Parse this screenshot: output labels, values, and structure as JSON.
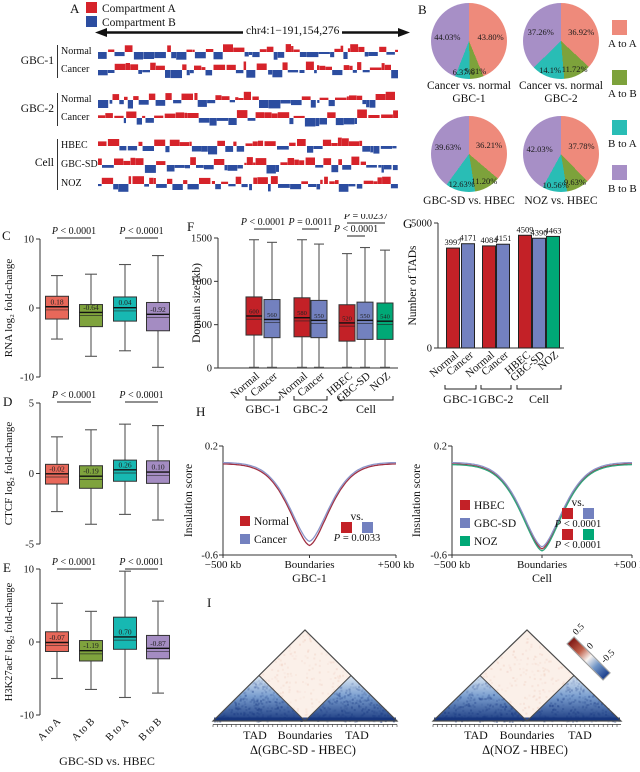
{
  "panels": {
    "a": "A",
    "b": "B",
    "c": "C",
    "d": "D",
    "e": "E",
    "f": "F",
    "g": "G",
    "h": "H",
    "i": "I"
  },
  "panelA": {
    "legend": [
      {
        "label": "Compartment A",
        "color": "#d6232a"
      },
      {
        "label": "Compartment B",
        "color": "#2c4da0"
      }
    ],
    "region": "chr4:1−191,154,276",
    "groups": [
      {
        "name": "GBC-1",
        "tracks": [
          "Normal",
          "Cancer"
        ]
      },
      {
        "name": "GBC-2",
        "tracks": [
          "Normal",
          "Cancer"
        ]
      },
      {
        "name": "Cell",
        "tracks": [
          "HBEC",
          "GBC-SD",
          "NOZ"
        ]
      }
    ]
  },
  "panelB": {
    "legend": [
      {
        "label": "A to A",
        "color": "#ee8a7b"
      },
      {
        "label": "A to B",
        "color": "#7da23b"
      },
      {
        "label": "B to A",
        "color": "#29bdb5"
      },
      {
        "label": "B to B",
        "color": "#a78fc6"
      }
    ]
  },
  "chart_data": [
    {
      "id": "compartment-pies",
      "type": "pie",
      "colors": [
        "#ee8a7b",
        "#7da23b",
        "#29bdb5",
        "#a78fc6"
      ],
      "slice_names": [
        "A to A",
        "A to B",
        "B to A",
        "B to B"
      ],
      "pies": [
        {
          "title": "Cancer vs. normal",
          "subtitle": "GBC-1",
          "values": [
            43.8,
            5.81,
            6.37,
            44.03
          ],
          "labels": [
            "43.80%",
            "5.81%",
            "6.37%",
            "44.03%"
          ]
        },
        {
          "title": "Cancer vs. normal",
          "subtitle": "GBC-2",
          "values": [
            36.92,
            11.72,
            14.1,
            37.26
          ],
          "labels": [
            "36.92%",
            "11.72%",
            "14.1%",
            "37.26%"
          ]
        },
        {
          "title": "",
          "subtitle": "GBC-SD vs. HBEC",
          "values": [
            36.21,
            11.2,
            12.63,
            39.63
          ],
          "labels": [
            "36.21%",
            "11.20%",
            "12.63%",
            "39.63%"
          ]
        },
        {
          "title": "",
          "subtitle": "NOZ vs. HBEC",
          "values": [
            37.78,
            9.63,
            10.56,
            42.03
          ],
          "labels": [
            "37.78%",
            "9.63%",
            "10.56%",
            "42.03%"
          ]
        }
      ]
    },
    {
      "id": "rna-box",
      "type": "box",
      "ylabel": "RNA log₂ fold-change",
      "ylim": [
        -10,
        10
      ],
      "yticks": [
        10,
        0,
        -10
      ],
      "categories": [
        "A to A",
        "A to B",
        "B to A",
        "B to B"
      ],
      "colors": [
        "#e8685a",
        "#7fa33d",
        "#17b8b2",
        "#a48cc2"
      ],
      "boxes": [
        {
          "label": "0.18",
          "median": 0.18,
          "q1": -1.6,
          "q3": 1.7,
          "whislo": -4.5,
          "whishi": 4.7
        },
        {
          "label": "-0.64",
          "median": -0.64,
          "q1": -2.7,
          "q3": 0.5,
          "whislo": -7.0,
          "whishi": 4.9
        },
        {
          "label": "0.04",
          "median": 0.04,
          "q1": -1.9,
          "q3": 1.6,
          "whislo": -6.2,
          "whishi": 6.3
        },
        {
          "label": "-0.92",
          "median": -0.92,
          "q1": -3.3,
          "q3": 0.8,
          "whislo": -8.6,
          "whishi": 7.6
        }
      ],
      "pvalues": [
        {
          "pair": [
            0,
            1
          ],
          "text": "P < 0.0001"
        },
        {
          "pair": [
            2,
            3
          ],
          "text": "P < 0.0001"
        }
      ]
    },
    {
      "id": "ctcf-box",
      "type": "box",
      "ylabel": "CTCF log₂ fold-change",
      "ylim": [
        -5,
        5
      ],
      "yticks": [
        5,
        0,
        -5
      ],
      "categories": [
        "A to A",
        "A to B",
        "B to A",
        "B to B"
      ],
      "colors": [
        "#e8685a",
        "#7fa33d",
        "#17b8b2",
        "#a48cc2"
      ],
      "boxes": [
        {
          "label": "-0.02",
          "median": -0.02,
          "q1": -0.75,
          "q3": 0.65,
          "whislo": -2.7,
          "whishi": 2.6
        },
        {
          "label": "-0.19",
          "median": -0.19,
          "q1": -1.05,
          "q3": 0.55,
          "whislo": -3.6,
          "whishi": 3.1
        },
        {
          "label": "0.26",
          "median": 0.26,
          "q1": -0.55,
          "q3": 0.95,
          "whislo": -2.9,
          "whishi": 3.5
        },
        {
          "label": "0.10",
          "median": 0.1,
          "q1": -0.7,
          "q3": 0.9,
          "whislo": -3.3,
          "whishi": 3.4
        }
      ],
      "pvalues": [
        {
          "pair": [
            0,
            1
          ],
          "text": "P < 0.0001"
        },
        {
          "pair": [
            2,
            3
          ],
          "text": "P < 0.0001"
        }
      ]
    },
    {
      "id": "h3k27ac-box",
      "type": "box",
      "ylabel": "H3K27acF log₂ fold-change",
      "ylim": [
        -10,
        10
      ],
      "yticks": [
        10,
        0,
        -10
      ],
      "categories": [
        "A to A",
        "A to B",
        "B to A",
        "B to B"
      ],
      "colors": [
        "#e8685a",
        "#7fa33d",
        "#17b8b2",
        "#a48cc2"
      ],
      "boxes": [
        {
          "label": "-0.07",
          "median": -0.07,
          "q1": -1.3,
          "q3": 1.4,
          "whislo": -5.0,
          "whishi": 5.3
        },
        {
          "label": "-1.19",
          "median": -1.19,
          "q1": -2.6,
          "q3": 0.2,
          "whislo": -6.5,
          "whishi": 4.2
        },
        {
          "label": "0.70",
          "median": 0.7,
          "q1": -1.0,
          "q3": 3.4,
          "whislo": -7.6,
          "whishi": 9.7
        },
        {
          "label": "-0.87",
          "median": -0.87,
          "q1": -2.3,
          "q3": 0.9,
          "whislo": -7.0,
          "whishi": 5.6
        }
      ],
      "pvalues": [
        {
          "pair": [
            0,
            1
          ],
          "text": "P < 0.0001"
        },
        {
          "pair": [
            2,
            3
          ],
          "text": "P < 0.0001"
        }
      ],
      "xticklabels": [
        "A to A",
        "A to B",
        "B to A",
        "B to B"
      ],
      "caption": "GBC-SD vs. HBEC"
    },
    {
      "id": "domain-size-box",
      "type": "box",
      "ylabel": "Domain size (kb)",
      "ylim": [
        0,
        1500
      ],
      "yticks": [
        1500,
        1000,
        500,
        0
      ],
      "categories": [
        "Normal",
        "Cancer",
        "Normal",
        "Cancer",
        "HBEC",
        "GBC-SD",
        "NOZ"
      ],
      "colors": [
        "#c32127",
        "#7381bf",
        "#c32127",
        "#7381bf",
        "#c32127",
        "#7381bf",
        "#00a876"
      ],
      "boxes": [
        {
          "label": "600",
          "median": 600,
          "q1": 380,
          "q3": 820,
          "whislo": 8,
          "whishi": 1480
        },
        {
          "label": "560",
          "median": 560,
          "q1": 350,
          "q3": 790,
          "whislo": 8,
          "whishi": 1450
        },
        {
          "label": "580",
          "median": 580,
          "q1": 360,
          "q3": 810,
          "whislo": 8,
          "whishi": 1480
        },
        {
          "label": "550",
          "median": 550,
          "q1": 350,
          "q3": 780,
          "whislo": 8,
          "whishi": 1430
        },
        {
          "label": "520",
          "median": 520,
          "q1": 310,
          "q3": 730,
          "whislo": 8,
          "whishi": 1320
        },
        {
          "label": "550",
          "median": 550,
          "q1": 330,
          "q3": 760,
          "whislo": 8,
          "whishi": 1390
        },
        {
          "label": "540",
          "median": 540,
          "q1": 330,
          "q3": 750,
          "whislo": 8,
          "whishi": 1360
        }
      ],
      "pvalues": [
        {
          "pair": [
            0,
            1
          ],
          "text": "P < 0.0001"
        },
        {
          "pair": [
            2,
            3
          ],
          "text": "P = 0.0011"
        },
        {
          "pair": [
            4,
            6
          ],
          "text": "P = 0.0237"
        },
        {
          "pair": [
            4,
            5
          ],
          "text": "P < 0.0001"
        }
      ],
      "xticklabels": [
        "Normal",
        "Cancer",
        "Normal",
        "Cancer",
        "HBEC",
        "GBC-SD",
        "NOZ"
      ],
      "groups": [
        {
          "label": "GBC-1",
          "span": [
            0,
            1
          ]
        },
        {
          "label": "GBC-2",
          "span": [
            2,
            3
          ]
        },
        {
          "label": "Cell",
          "span": [
            4,
            6
          ]
        }
      ]
    },
    {
      "id": "tad-count-bar",
      "type": "bar",
      "ylabel": "Number of TADs",
      "ylim": [
        0,
        5000
      ],
      "yticks": [
        5000,
        0
      ],
      "categories": [
        "Normal",
        "Cancer",
        "Normal",
        "Cancer",
        "HBEC",
        "GBC-SD",
        "NOZ"
      ],
      "values": [
        3997,
        4171,
        4084,
        4151,
        4509,
        4390,
        4463
      ],
      "value_labels": [
        "3997",
        "4171",
        "4084",
        "4151",
        "4509",
        "4390",
        "4463"
      ],
      "colors": [
        "#c32127",
        "#7381bf",
        "#c32127",
        "#7381bf",
        "#c32127",
        "#7381bf",
        "#00a876"
      ],
      "groups": [
        {
          "label": "GBC-1",
          "span": [
            0,
            1
          ]
        },
        {
          "label": "GBC-2",
          "span": [
            2,
            3
          ]
        },
        {
          "label": "Cell",
          "span": [
            4,
            6
          ]
        }
      ]
    },
    {
      "id": "insulation-gbc1",
      "type": "line",
      "ylabel": "Insulation score",
      "ylim": [
        -0.6,
        0.2
      ],
      "yticks": [
        0.2,
        -0.6
      ],
      "xticklabels": [
        "−500 kb",
        "Boundaries",
        "+500 kb"
      ],
      "caption": "GBC-1",
      "series": [
        {
          "name": "Normal",
          "color": "#a03043",
          "square": "#c32127",
          "edge": 0.07,
          "dip": -0.53
        },
        {
          "name": "Cancer",
          "color": "#8b95c9",
          "square": "#7381bf",
          "edge": 0.08,
          "dip": -0.5
        }
      ],
      "vs": {
        "label": "vs.",
        "rows": [
          {
            "colors": [
              "#c32127",
              "#7381bf"
            ],
            "text": "P = 0.0033"
          }
        ]
      }
    },
    {
      "id": "insulation-cell",
      "type": "line",
      "ylabel": "Insulation score",
      "ylim": [
        -0.6,
        0.2
      ],
      "yticks": [
        0.2,
        -0.6
      ],
      "xticklabels": [
        "−500 kb",
        "Boundaries",
        "+500 kb"
      ],
      "caption": "Cell",
      "series": [
        {
          "name": "HBEC",
          "color": "#a03043",
          "square": "#c32127",
          "edge": 0.07,
          "dip": -0.555
        },
        {
          "name": "GBC-SD",
          "color": "#8b95c9",
          "square": "#7381bf",
          "edge": 0.08,
          "dip": -0.54
        },
        {
          "name": "NOZ",
          "color": "#2fa67c",
          "square": "#00a876",
          "edge": 0.065,
          "dip": -0.57
        }
      ],
      "vs": {
        "label": "vs.",
        "rows": [
          {
            "colors": [
              "#c32127",
              "#7381bf"
            ],
            "text": "P < 0.0001"
          },
          {
            "colors": [
              "#c32127",
              "#00a876"
            ],
            "text": "P < 0.0001"
          }
        ]
      }
    },
    {
      "id": "tad-delta-heatmaps",
      "type": "heatmap",
      "items": [
        {
          "xlabels": [
            "TAD",
            "Boundaries",
            "TAD"
          ],
          "caption": "Δ(GBC-SD - HBEC)"
        },
        {
          "xlabels": [
            "TAD",
            "Boundaries",
            "TAD"
          ],
          "caption": "Δ(NOZ - HBEC)"
        }
      ],
      "colorbar": {
        "labels": [
          "0.5",
          "0",
          "-0.5"
        ],
        "positive_color": "#7f1a16",
        "negative_color": "#1d3f8c"
      }
    }
  ]
}
